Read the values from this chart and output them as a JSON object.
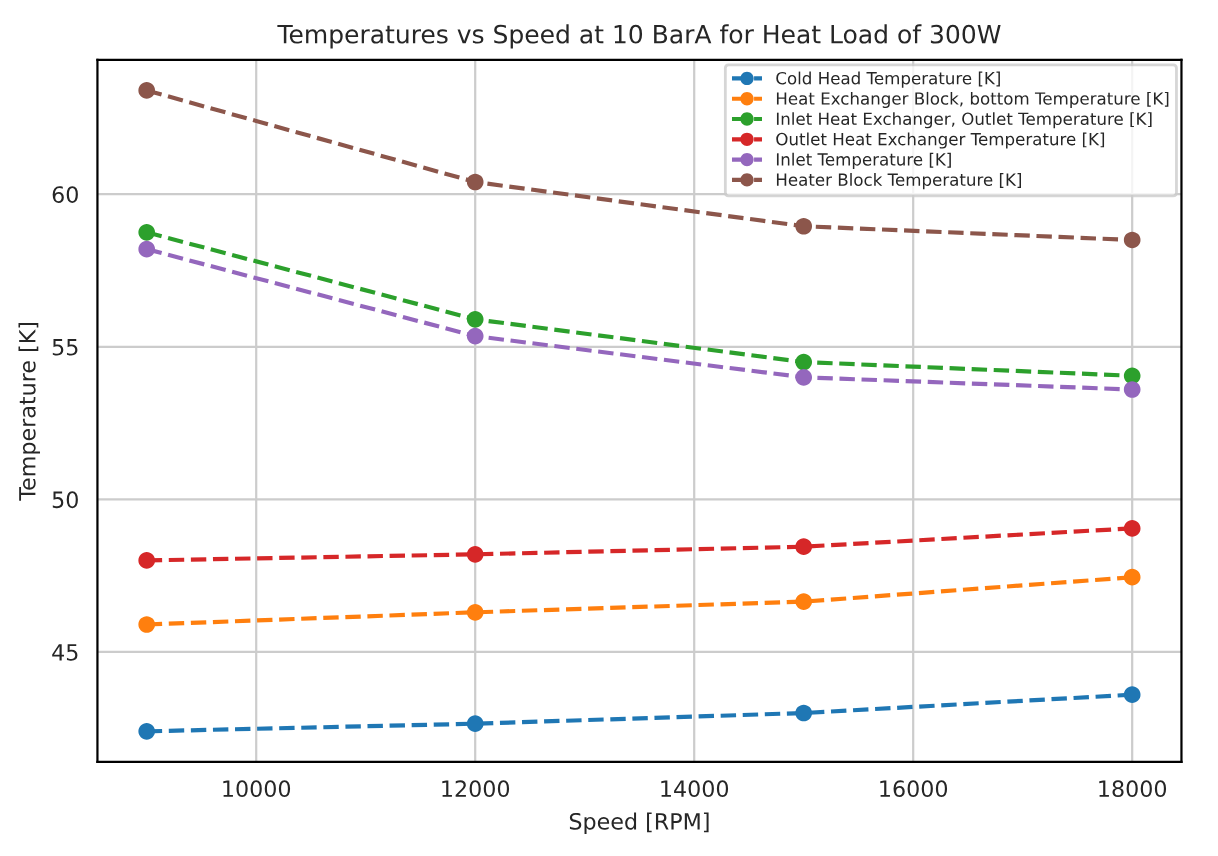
{
  "chart_data": {
    "type": "line",
    "title": "Temperatures vs Speed at 10 BarA for Heat Load of 300W",
    "xlabel": "Speed [RPM]",
    "ylabel": "Temperature [K]",
    "x": [
      9000,
      12000,
      15000,
      18000
    ],
    "series": [
      {
        "name": "Cold Head Temperature [K]",
        "color": "#1f77b4",
        "values": [
          42.4,
          42.65,
          43.0,
          43.6
        ]
      },
      {
        "name": "Heat Exchanger Block, bottom Temperature [K]",
        "color": "#ff7f0e",
        "values": [
          45.9,
          46.3,
          46.65,
          47.45
        ]
      },
      {
        "name": "Inlet Heat Exchanger, Outlet Temperature [K]",
        "color": "#2ca02c",
        "values": [
          58.75,
          55.9,
          54.5,
          54.05
        ]
      },
      {
        "name": "Outlet Heat Exchanger Temperature [K]",
        "color": "#d62728",
        "values": [
          48.0,
          48.2,
          48.45,
          49.05
        ]
      },
      {
        "name": "Inlet Temperature [K]",
        "color": "#9467bd",
        "values": [
          58.2,
          55.35,
          54.0,
          53.6
        ]
      },
      {
        "name": "Heater Block Temperature [K]",
        "color": "#8c564b",
        "values": [
          63.4,
          60.4,
          58.95,
          58.5
        ]
      }
    ],
    "xlim": [
      8550,
      18450
    ],
    "xticks": [
      10000,
      12000,
      14000,
      16000,
      18000
    ],
    "ylim": [
      41.4,
      64.4
    ],
    "yticks": [
      45,
      50,
      55,
      60
    ],
    "grid": true,
    "legend": "top right",
    "marker": "circle",
    "line_style": "dashed"
  }
}
